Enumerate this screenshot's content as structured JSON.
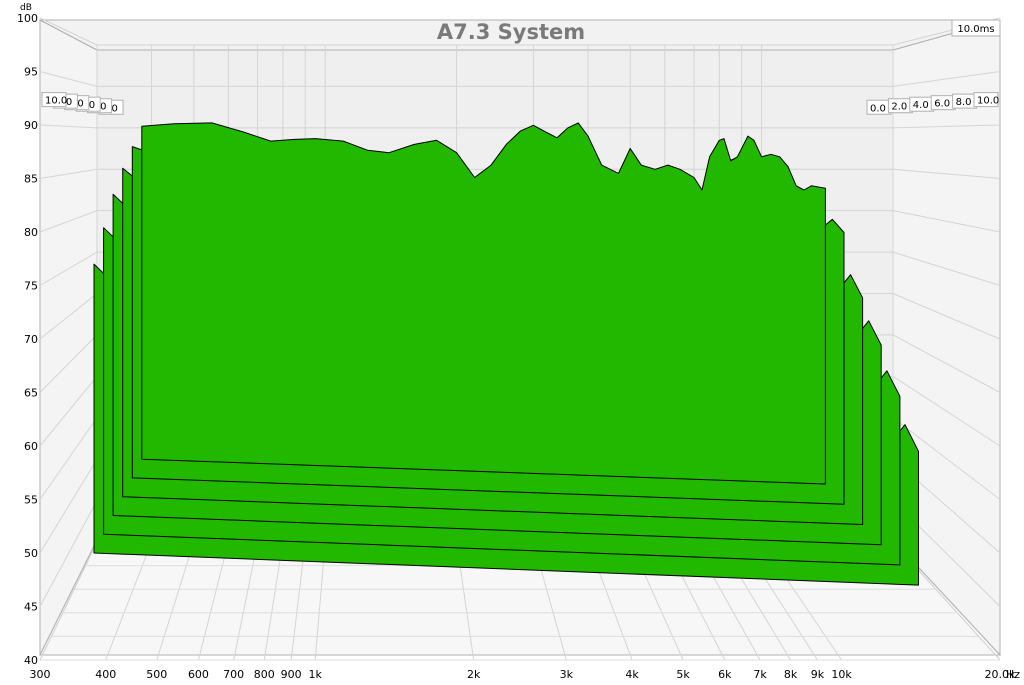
{
  "chart_data": {
    "type": "area",
    "title": "A7.3 System",
    "xlabel": "",
    "x_unit": "Hz",
    "ylabel": "",
    "y_unit": "dB",
    "x_scale": "log",
    "xlim": [
      300,
      20000
    ],
    "ylim": [
      40,
      100
    ],
    "x_ticks": [
      300,
      400,
      500,
      600,
      700,
      800,
      900,
      1000,
      2000,
      3000,
      4000,
      5000,
      6000,
      7000,
      8000,
      9000,
      10000,
      20000
    ],
    "x_tick_labels": [
      "300",
      "400",
      "500",
      "600",
      "700",
      "800",
      "900",
      "1k",
      "2k",
      "3k",
      "4k",
      "5k",
      "6k",
      "7k",
      "8k",
      "9k",
      "10k",
      "20.0k"
    ],
    "y_ticks": [
      40,
      45,
      50,
      55,
      60,
      65,
      70,
      75,
      80,
      85,
      90,
      95,
      100
    ],
    "y_tick_labels": [
      "40",
      "45",
      "50",
      "55",
      "60",
      "65",
      "70",
      "75",
      "80",
      "85",
      "90",
      "95",
      "100"
    ],
    "z_label": "10.0ms",
    "z_ticks_ms": [
      0.0,
      2.0,
      4.0,
      6.0,
      8.0,
      10.0
    ],
    "z_tick_labels": [
      "0.0",
      "2.0",
      "4.0",
      "6.0",
      "8.0",
      "10.0"
    ],
    "fill_color": "#22b800",
    "panel_color": "#f0f0f0",
    "grid": true,
    "series": [
      {
        "time_ms": 0.0,
        "f_start": 380,
        "f_end": 14000,
        "points": [
          [
            380,
            90.2
          ],
          [
            450,
            90.5
          ],
          [
            550,
            90.6
          ],
          [
            650,
            89.5
          ],
          [
            750,
            88.4
          ],
          [
            850,
            88.6
          ],
          [
            950,
            88.7
          ],
          [
            1100,
            88.4
          ],
          [
            1250,
            87.3
          ],
          [
            1400,
            87.0
          ],
          [
            1600,
            88.0
          ],
          [
            1800,
            88.5
          ],
          [
            2000,
            87.0
          ],
          [
            2200,
            84.0
          ],
          [
            2400,
            85.5
          ],
          [
            2600,
            88.0
          ],
          [
            2800,
            89.6
          ],
          [
            3000,
            90.3
          ],
          [
            3200,
            89.5
          ],
          [
            3400,
            88.8
          ],
          [
            3600,
            90.0
          ],
          [
            3800,
            90.6
          ],
          [
            4000,
            89.0
          ],
          [
            4300,
            85.5
          ],
          [
            4700,
            84.5
          ],
          [
            5000,
            87.5
          ],
          [
            5300,
            85.5
          ],
          [
            5700,
            85.0
          ],
          [
            6100,
            85.5
          ],
          [
            6500,
            85.0
          ],
          [
            7000,
            84.0
          ],
          [
            7300,
            82.5
          ],
          [
            7600,
            86.5
          ],
          [
            8000,
            88.5
          ],
          [
            8200,
            88.7
          ],
          [
            8500,
            86.0
          ],
          [
            8800,
            86.5
          ],
          [
            9300,
            89.0
          ],
          [
            9600,
            88.5
          ],
          [
            10000,
            86.5
          ],
          [
            10500,
            86.8
          ],
          [
            11000,
            86.5
          ],
          [
            11500,
            85.3
          ],
          [
            12000,
            83.0
          ],
          [
            12500,
            82.5
          ],
          [
            13000,
            83.0
          ],
          [
            14000,
            82.7
          ]
        ]
      },
      {
        "time_ms": 2.0,
        "f_start": 380,
        "f_end": 14000,
        "points": [
          [
            380,
            87.8
          ],
          [
            450,
            86.5
          ],
          [
            550,
            85.0
          ],
          [
            650,
            83.0
          ],
          [
            750,
            81.5
          ],
          [
            850,
            82.0
          ],
          [
            950,
            81.8
          ],
          [
            1100,
            79.5
          ],
          [
            1300,
            79.0
          ],
          [
            1500,
            80.5
          ],
          [
            1700,
            80.8
          ],
          [
            1900,
            79.5
          ],
          [
            2100,
            76.5
          ],
          [
            2300,
            77.5
          ],
          [
            2500,
            80.0
          ],
          [
            2700,
            78.0
          ],
          [
            2900,
            79.5
          ],
          [
            3100,
            81.0
          ],
          [
            3300,
            79.0
          ],
          [
            3600,
            81.5
          ],
          [
            3900,
            79.5
          ],
          [
            4200,
            76.5
          ],
          [
            4600,
            77.0
          ],
          [
            5000,
            79.5
          ],
          [
            5400,
            76.5
          ],
          [
            5800,
            76.5
          ],
          [
            6300,
            76.0
          ],
          [
            6800,
            74.5
          ],
          [
            7200,
            78.0
          ],
          [
            7700,
            86.0
          ],
          [
            8100,
            86.5
          ],
          [
            8500,
            82.0
          ],
          [
            9000,
            84.5
          ],
          [
            9500,
            85.0
          ],
          [
            10000,
            82.0
          ],
          [
            10600,
            82.5
          ],
          [
            11200,
            81.5
          ],
          [
            11800,
            79.5
          ],
          [
            12500,
            78.5
          ],
          [
            13200,
            79.5
          ],
          [
            14000,
            78.0
          ]
        ]
      },
      {
        "time_ms": 4.0,
        "f_start": 380,
        "f_end": 14000,
        "points": [
          [
            380,
            85.5
          ],
          [
            450,
            82.5
          ],
          [
            550,
            79.0
          ],
          [
            650,
            75.5
          ],
          [
            750,
            74.5
          ],
          [
            850,
            77.5
          ],
          [
            950,
            78.2
          ],
          [
            1100,
            74.5
          ],
          [
            1300,
            74.0
          ],
          [
            1500,
            77.5
          ],
          [
            1700,
            78.0
          ],
          [
            1900,
            75.5
          ],
          [
            2100,
            72.5
          ],
          [
            2300,
            73.5
          ],
          [
            2500,
            76.5
          ],
          [
            2700,
            73.5
          ],
          [
            2900,
            75.0
          ],
          [
            3100,
            77.0
          ],
          [
            3300,
            74.5
          ],
          [
            3600,
            77.5
          ],
          [
            3900,
            74.5
          ],
          [
            4200,
            70.5
          ],
          [
            4600,
            71.5
          ],
          [
            5000,
            75.5
          ],
          [
            5400,
            71.5
          ],
          [
            5800,
            71.5
          ],
          [
            6300,
            71.0
          ],
          [
            6800,
            70.0
          ],
          [
            7200,
            73.5
          ],
          [
            7700,
            81.5
          ],
          [
            8100,
            82.5
          ],
          [
            8500,
            77.5
          ],
          [
            9000,
            80.5
          ],
          [
            9500,
            81.0
          ],
          [
            10000,
            77.5
          ],
          [
            10600,
            77.5
          ],
          [
            11200,
            76.5
          ],
          [
            11800,
            74.5
          ],
          [
            12500,
            72.5
          ],
          [
            13200,
            74.0
          ],
          [
            14000,
            71.5
          ]
        ]
      },
      {
        "time_ms": 6.0,
        "f_start": 380,
        "f_end": 14000,
        "points": [
          [
            380,
            83.0
          ],
          [
            450,
            79.5
          ],
          [
            550,
            75.5
          ],
          [
            650,
            71.5
          ],
          [
            750,
            71.0
          ],
          [
            850,
            73.5
          ],
          [
            950,
            74.8
          ],
          [
            1100,
            70.5
          ],
          [
            1300,
            70.0
          ],
          [
            1500,
            74.5
          ],
          [
            1700,
            74.8
          ],
          [
            1900,
            71.5
          ],
          [
            2100,
            68.5
          ],
          [
            2300,
            69.5
          ],
          [
            2500,
            72.5
          ],
          [
            2700,
            69.5
          ],
          [
            2900,
            71.0
          ],
          [
            3100,
            73.0
          ],
          [
            3300,
            70.5
          ],
          [
            3600,
            73.5
          ],
          [
            3900,
            70.5
          ],
          [
            4200,
            66.5
          ],
          [
            4600,
            67.5
          ],
          [
            5000,
            71.5
          ],
          [
            5400,
            67.5
          ],
          [
            5800,
            67.5
          ],
          [
            6300,
            67.0
          ],
          [
            6800,
            66.0
          ],
          [
            7200,
            69.5
          ],
          [
            7700,
            77.5
          ],
          [
            8100,
            78.5
          ],
          [
            8500,
            73.5
          ],
          [
            9000,
            76.5
          ],
          [
            9500,
            77.0
          ],
          [
            10000,
            73.5
          ],
          [
            10600,
            73.5
          ],
          [
            11200,
            72.5
          ],
          [
            11800,
            70.5
          ],
          [
            12500,
            68.5
          ],
          [
            13200,
            70.0
          ],
          [
            14000,
            67.5
          ]
        ]
      },
      {
        "time_ms": 8.0,
        "f_start": 380,
        "f_end": 14000,
        "points": [
          [
            380,
            80.0
          ],
          [
            450,
            76.5
          ],
          [
            550,
            72.5
          ],
          [
            650,
            68.5
          ],
          [
            750,
            68.0
          ],
          [
            850,
            69.5
          ],
          [
            950,
            69.0
          ],
          [
            1100,
            66.5
          ],
          [
            1300,
            66.0
          ],
          [
            1500,
            70.5
          ],
          [
            1700,
            70.8
          ],
          [
            1900,
            67.5
          ],
          [
            2100,
            64.5
          ],
          [
            2300,
            65.5
          ],
          [
            2500,
            68.5
          ],
          [
            2700,
            65.5
          ],
          [
            2900,
            67.0
          ],
          [
            3100,
            69.0
          ],
          [
            3300,
            66.5
          ],
          [
            3600,
            69.5
          ],
          [
            3900,
            66.5
          ],
          [
            4200,
            62.5
          ],
          [
            4600,
            63.5
          ],
          [
            5000,
            67.5
          ],
          [
            5400,
            63.5
          ],
          [
            5800,
            63.5
          ],
          [
            6300,
            63.0
          ],
          [
            6800,
            62.0
          ],
          [
            7200,
            65.5
          ],
          [
            7700,
            73.5
          ],
          [
            8100,
            74.5
          ],
          [
            8500,
            69.5
          ],
          [
            9000,
            72.5
          ],
          [
            9500,
            73.0
          ],
          [
            10000,
            69.5
          ],
          [
            10600,
            69.5
          ],
          [
            11200,
            68.5
          ],
          [
            11800,
            66.5
          ],
          [
            12500,
            64.5
          ],
          [
            13200,
            66.0
          ],
          [
            14000,
            63.5
          ]
        ]
      },
      {
        "time_ms": 10.0,
        "f_start": 380,
        "f_end": 14000,
        "points": [
          [
            380,
            77.0
          ],
          [
            450,
            73.5
          ],
          [
            550,
            69.5
          ],
          [
            650,
            66.0
          ],
          [
            750,
            64.5
          ],
          [
            850,
            64.0
          ],
          [
            950,
            63.0
          ],
          [
            1100,
            62.0
          ],
          [
            1300,
            62.5
          ],
          [
            1500,
            66.0
          ],
          [
            1700,
            66.5
          ],
          [
            1900,
            64.0
          ],
          [
            2100,
            61.5
          ],
          [
            2300,
            62.0
          ],
          [
            2500,
            65.0
          ],
          [
            2700,
            62.0
          ],
          [
            2900,
            63.5
          ],
          [
            3100,
            65.0
          ],
          [
            3300,
            62.5
          ],
          [
            3600,
            65.5
          ],
          [
            3900,
            62.5
          ],
          [
            4200,
            58.5
          ],
          [
            4600,
            59.5
          ],
          [
            5000,
            63.5
          ],
          [
            5400,
            59.5
          ],
          [
            5800,
            59.5
          ],
          [
            6300,
            59.0
          ],
          [
            6800,
            58.0
          ],
          [
            7200,
            61.5
          ],
          [
            7700,
            69.5
          ],
          [
            8100,
            70.5
          ],
          [
            8500,
            65.5
          ],
          [
            9000,
            68.5
          ],
          [
            9500,
            69.0
          ],
          [
            10000,
            65.5
          ],
          [
            10600,
            65.5
          ],
          [
            11200,
            64.5
          ],
          [
            11800,
            62.5
          ],
          [
            12500,
            60.5
          ],
          [
            13200,
            62.0
          ],
          [
            14000,
            59.5
          ]
        ]
      }
    ]
  }
}
